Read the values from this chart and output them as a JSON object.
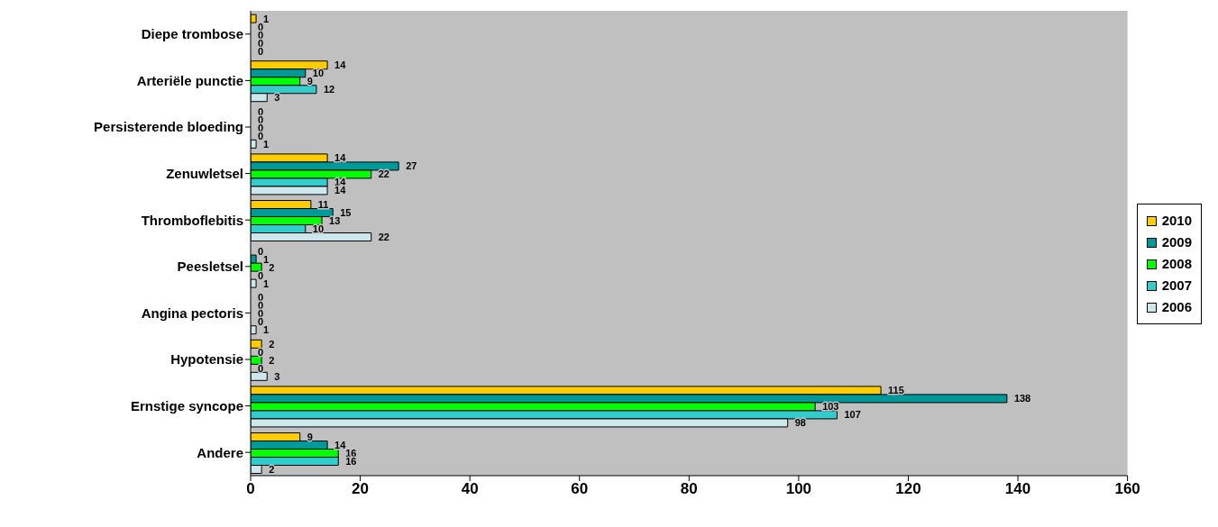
{
  "chart_data": {
    "type": "bar",
    "orientation": "horizontal",
    "categories": [
      "Diepe trombose",
      "Arteriële punctie",
      "Persisterende bloeding",
      "Zenuwletsel",
      "Thromboflebitis",
      "Peesletsel",
      "Angina pectoris",
      "Hypotensie",
      "Ernstige syncope",
      "Andere"
    ],
    "series": [
      {
        "name": "2010",
        "color": "#ffcc00",
        "values": [
          1,
          14,
          0,
          14,
          11,
          0,
          0,
          2,
          115,
          9
        ]
      },
      {
        "name": "2009",
        "color": "#009999",
        "values": [
          0,
          10,
          0,
          27,
          15,
          1,
          0,
          0,
          138,
          14
        ]
      },
      {
        "name": "2008",
        "color": "#00ff00",
        "values": [
          0,
          9,
          0,
          22,
          13,
          2,
          0,
          2,
          103,
          16
        ]
      },
      {
        "name": "2007",
        "color": "#33cccc",
        "values": [
          0,
          12,
          0,
          14,
          10,
          0,
          0,
          0,
          107,
          16
        ]
      },
      {
        "name": "2006",
        "color": "#cce8ec",
        "values": [
          0,
          3,
          1,
          14,
          22,
          1,
          1,
          3,
          98,
          2
        ]
      }
    ],
    "xlim": [
      0,
      160
    ],
    "xticks": [
      0,
      20,
      40,
      60,
      80,
      100,
      120,
      140,
      160
    ],
    "data_labels": true,
    "legend": "right"
  }
}
